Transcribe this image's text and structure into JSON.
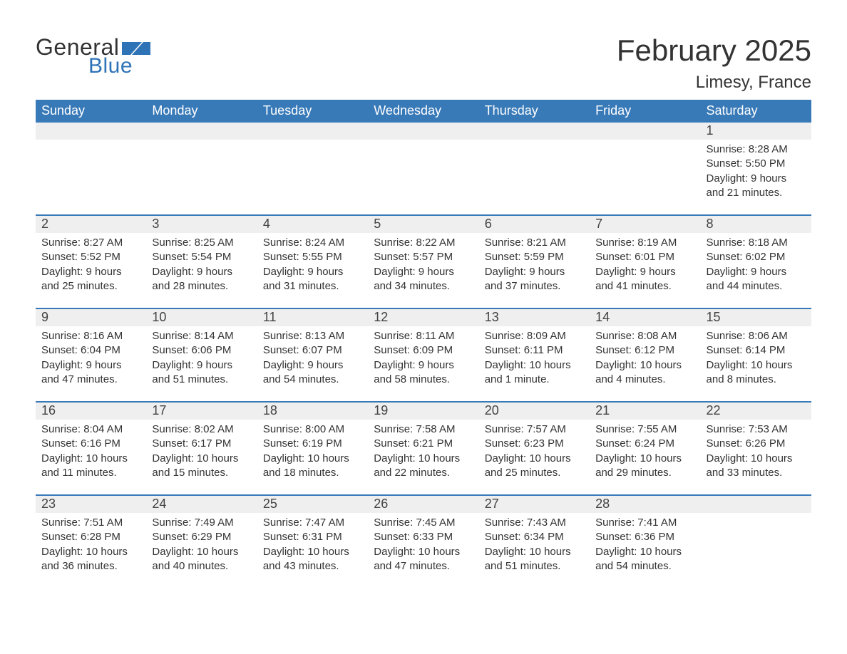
{
  "logo": {
    "text_general": "General",
    "text_blue": "Blue",
    "flag_color": "#2f73b7"
  },
  "title": "February 2025",
  "location": "Limesy, France",
  "colors": {
    "header_bg": "#3879b8",
    "header_text": "#ffffff",
    "row_divider": "#3879b8",
    "daynum_bg": "#efefef",
    "body_text": "#333333",
    "page_bg": "#ffffff"
  },
  "typography": {
    "title_fontsize": 42,
    "location_fontsize": 24,
    "dow_fontsize": 18,
    "daynum_fontsize": 18,
    "body_fontsize": 15
  },
  "days_of_week": [
    "Sunday",
    "Monday",
    "Tuesday",
    "Wednesday",
    "Thursday",
    "Friday",
    "Saturday"
  ],
  "label_sunrise": "Sunrise",
  "label_sunset": "Sunset",
  "label_daylight": "Daylight",
  "weeks": [
    [
      null,
      null,
      null,
      null,
      null,
      null,
      {
        "n": "1",
        "sunrise": "8:28 AM",
        "sunset": "5:50 PM",
        "daylight": "9 hours and 21 minutes."
      }
    ],
    [
      {
        "n": "2",
        "sunrise": "8:27 AM",
        "sunset": "5:52 PM",
        "daylight": "9 hours and 25 minutes."
      },
      {
        "n": "3",
        "sunrise": "8:25 AM",
        "sunset": "5:54 PM",
        "daylight": "9 hours and 28 minutes."
      },
      {
        "n": "4",
        "sunrise": "8:24 AM",
        "sunset": "5:55 PM",
        "daylight": "9 hours and 31 minutes."
      },
      {
        "n": "5",
        "sunrise": "8:22 AM",
        "sunset": "5:57 PM",
        "daylight": "9 hours and 34 minutes."
      },
      {
        "n": "6",
        "sunrise": "8:21 AM",
        "sunset": "5:59 PM",
        "daylight": "9 hours and 37 minutes."
      },
      {
        "n": "7",
        "sunrise": "8:19 AM",
        "sunset": "6:01 PM",
        "daylight": "9 hours and 41 minutes."
      },
      {
        "n": "8",
        "sunrise": "8:18 AM",
        "sunset": "6:02 PM",
        "daylight": "9 hours and 44 minutes."
      }
    ],
    [
      {
        "n": "9",
        "sunrise": "8:16 AM",
        "sunset": "6:04 PM",
        "daylight": "9 hours and 47 minutes."
      },
      {
        "n": "10",
        "sunrise": "8:14 AM",
        "sunset": "6:06 PM",
        "daylight": "9 hours and 51 minutes."
      },
      {
        "n": "11",
        "sunrise": "8:13 AM",
        "sunset": "6:07 PM",
        "daylight": "9 hours and 54 minutes."
      },
      {
        "n": "12",
        "sunrise": "8:11 AM",
        "sunset": "6:09 PM",
        "daylight": "9 hours and 58 minutes."
      },
      {
        "n": "13",
        "sunrise": "8:09 AM",
        "sunset": "6:11 PM",
        "daylight": "10 hours and 1 minute."
      },
      {
        "n": "14",
        "sunrise": "8:08 AM",
        "sunset": "6:12 PM",
        "daylight": "10 hours and 4 minutes."
      },
      {
        "n": "15",
        "sunrise": "8:06 AM",
        "sunset": "6:14 PM",
        "daylight": "10 hours and 8 minutes."
      }
    ],
    [
      {
        "n": "16",
        "sunrise": "8:04 AM",
        "sunset": "6:16 PM",
        "daylight": "10 hours and 11 minutes."
      },
      {
        "n": "17",
        "sunrise": "8:02 AM",
        "sunset": "6:17 PM",
        "daylight": "10 hours and 15 minutes."
      },
      {
        "n": "18",
        "sunrise": "8:00 AM",
        "sunset": "6:19 PM",
        "daylight": "10 hours and 18 minutes."
      },
      {
        "n": "19",
        "sunrise": "7:58 AM",
        "sunset": "6:21 PM",
        "daylight": "10 hours and 22 minutes."
      },
      {
        "n": "20",
        "sunrise": "7:57 AM",
        "sunset": "6:23 PM",
        "daylight": "10 hours and 25 minutes."
      },
      {
        "n": "21",
        "sunrise": "7:55 AM",
        "sunset": "6:24 PM",
        "daylight": "10 hours and 29 minutes."
      },
      {
        "n": "22",
        "sunrise": "7:53 AM",
        "sunset": "6:26 PM",
        "daylight": "10 hours and 33 minutes."
      }
    ],
    [
      {
        "n": "23",
        "sunrise": "7:51 AM",
        "sunset": "6:28 PM",
        "daylight": "10 hours and 36 minutes."
      },
      {
        "n": "24",
        "sunrise": "7:49 AM",
        "sunset": "6:29 PM",
        "daylight": "10 hours and 40 minutes."
      },
      {
        "n": "25",
        "sunrise": "7:47 AM",
        "sunset": "6:31 PM",
        "daylight": "10 hours and 43 minutes."
      },
      {
        "n": "26",
        "sunrise": "7:45 AM",
        "sunset": "6:33 PM",
        "daylight": "10 hours and 47 minutes."
      },
      {
        "n": "27",
        "sunrise": "7:43 AM",
        "sunset": "6:34 PM",
        "daylight": "10 hours and 51 minutes."
      },
      {
        "n": "28",
        "sunrise": "7:41 AM",
        "sunset": "6:36 PM",
        "daylight": "10 hours and 54 minutes."
      },
      null
    ]
  ]
}
